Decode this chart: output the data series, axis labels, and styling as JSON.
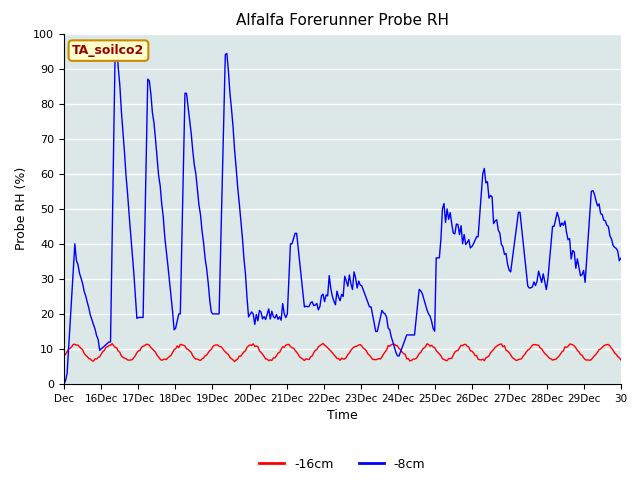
{
  "title": "Alfalfa Forerunner Probe RH",
  "xlabel": "Time",
  "ylabel": "Probe RH (%)",
  "ylim": [
    0,
    100
  ],
  "fig_bg_color": "#ffffff",
  "plot_bg_color": "#dce8e8",
  "line_color_8cm": "#0000ff",
  "line_color_16cm": "#ff0000",
  "legend_label_16cm": "-16cm",
  "legend_label_8cm": "-8cm",
  "station_label": "TA_soilco2",
  "xtick_labels": [
    "Dec",
    "16Dec",
    "17Dec",
    "18Dec",
    "19Dec",
    "20Dec",
    "21Dec",
    "22Dec",
    "23Dec",
    "24Dec",
    "25Dec",
    "26Dec",
    "27Dec",
    "28Dec",
    "29Dec",
    "30"
  ],
  "ytick_values": [
    0,
    10,
    20,
    30,
    40,
    50,
    60,
    70,
    80,
    90,
    100
  ],
  "grid_color": "#ffffff",
  "label_box_facecolor": "#ffffcc",
  "label_box_edgecolor": "#cc8800",
  "label_text_color": "#990000"
}
